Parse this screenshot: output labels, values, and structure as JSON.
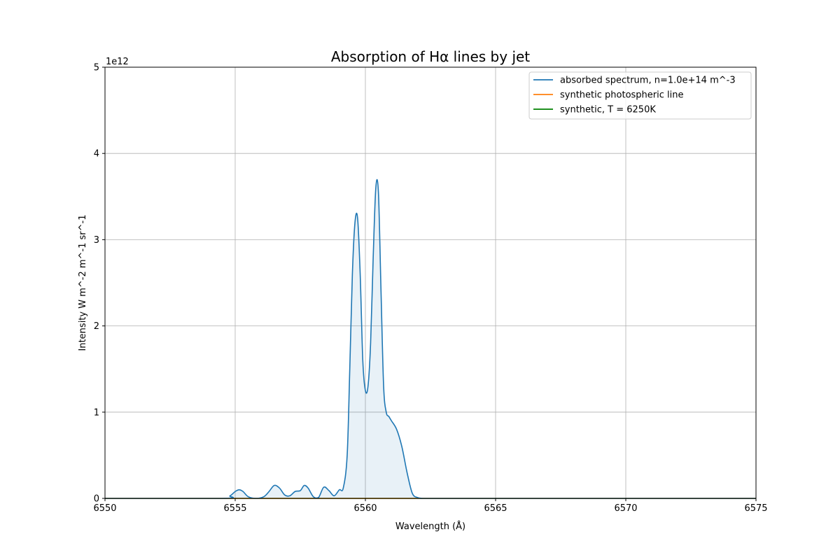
{
  "chart_data": {
    "type": "line",
    "title": "Absorption of Hα lines by jet",
    "xlabel": "Wavelength (Å)",
    "ylabel": "Intensity W m^-2 m^-1 sr^-1",
    "y_offset_text": "1e12",
    "xlim": [
      6550,
      6575
    ],
    "ylim": [
      0,
      5
    ],
    "y_scale_factor": 1000000000000.0,
    "xticks": [
      6550,
      6555,
      6560,
      6565,
      6570,
      6575
    ],
    "yticks": [
      0,
      1,
      2,
      3,
      4,
      5
    ],
    "grid": true,
    "legend_position": "top-right",
    "colors": {
      "blue": "#1f77b4",
      "orange": "#ff7f0e",
      "green": "#008000"
    },
    "series": [
      {
        "name": "absorbed spectrum, n=1.0e+14 m^-3",
        "color": "#1f77b4",
        "filled": true,
        "x": [
          6550,
          6554.5,
          6554.8,
          6555.0,
          6555.15,
          6555.3,
          6555.5,
          6555.8,
          6556.1,
          6556.3,
          6556.5,
          6556.7,
          6556.9,
          6557.1,
          6557.3,
          6557.5,
          6557.65,
          6557.8,
          6558.0,
          6558.2,
          6558.4,
          6558.6,
          6558.8,
          6559.0,
          6559.15,
          6559.3,
          6559.4,
          6559.5,
          6559.6,
          6559.7,
          6559.8,
          6559.9,
          6560.0,
          6560.1,
          6560.2,
          6560.3,
          6560.4,
          6560.5,
          6560.6,
          6560.7,
          6560.8,
          6560.9,
          6561.0,
          6561.2,
          6561.4,
          6561.6,
          6561.8,
          6562.0,
          6562.2,
          6562.5,
          6565,
          6570,
          6575
        ],
        "y": [
          0,
          0,
          0.03,
          0.08,
          0.1,
          0.08,
          0.02,
          0.0,
          0.02,
          0.08,
          0.15,
          0.12,
          0.04,
          0.03,
          0.08,
          0.09,
          0.15,
          0.12,
          0.02,
          0.01,
          0.13,
          0.09,
          0.03,
          0.1,
          0.12,
          0.5,
          1.5,
          2.6,
          3.2,
          3.25,
          2.6,
          1.6,
          1.25,
          1.3,
          1.8,
          2.8,
          3.6,
          3.55,
          2.4,
          1.3,
          1.0,
          0.95,
          0.9,
          0.8,
          0.6,
          0.3,
          0.06,
          0.01,
          0,
          0,
          0,
          0,
          0
        ]
      },
      {
        "name": "synthetic photospheric line",
        "color": "#ff7f0e",
        "x": [
          6550,
          6575
        ],
        "y": [
          0,
          0
        ]
      },
      {
        "name": "synthetic, T = 6250K",
        "color": "#008000",
        "x": [
          6550,
          6575
        ],
        "y": [
          0,
          0
        ]
      }
    ]
  }
}
